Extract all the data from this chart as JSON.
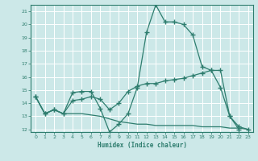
{
  "xlabel": "Humidex (Indice chaleur)",
  "x": [
    0,
    1,
    2,
    3,
    4,
    5,
    6,
    7,
    8,
    9,
    10,
    11,
    12,
    13,
    14,
    15,
    16,
    17,
    18,
    19,
    20,
    21,
    22,
    23
  ],
  "line_max": [
    14.5,
    13.2,
    13.5,
    13.2,
    14.8,
    14.9,
    14.9,
    13.6,
    11.8,
    12.4,
    13.2,
    15.2,
    19.4,
    21.5,
    20.2,
    20.2,
    20.0,
    19.2,
    16.8,
    16.5,
    15.2,
    13.0,
    12.0,
    null
  ],
  "line_mean": [
    14.5,
    13.2,
    13.5,
    13.2,
    14.2,
    14.3,
    14.5,
    14.3,
    13.5,
    14.0,
    14.9,
    15.3,
    15.5,
    15.5,
    15.7,
    15.8,
    15.9,
    16.1,
    16.3,
    16.5,
    16.5,
    13.0,
    12.2,
    12.0
  ],
  "line_min": [
    14.5,
    13.2,
    13.5,
    13.2,
    13.2,
    13.2,
    13.1,
    13.0,
    12.8,
    12.6,
    12.5,
    12.4,
    12.4,
    12.3,
    12.3,
    12.3,
    12.3,
    12.3,
    12.2,
    12.2,
    12.2,
    12.1,
    12.1,
    12.0
  ],
  "line_color": "#2e7d6e",
  "bg_color": "#cce8e8",
  "grid_color": "#b8d8d8",
  "ylim": [
    11.8,
    21.5
  ],
  "xlim": [
    -0.5,
    23.5
  ],
  "yticks": [
    12,
    13,
    14,
    15,
    16,
    17,
    18,
    19,
    20,
    21
  ],
  "xticks": [
    0,
    1,
    2,
    3,
    4,
    5,
    6,
    7,
    8,
    9,
    10,
    11,
    12,
    13,
    14,
    15,
    16,
    17,
    18,
    19,
    20,
    21,
    22,
    23
  ]
}
